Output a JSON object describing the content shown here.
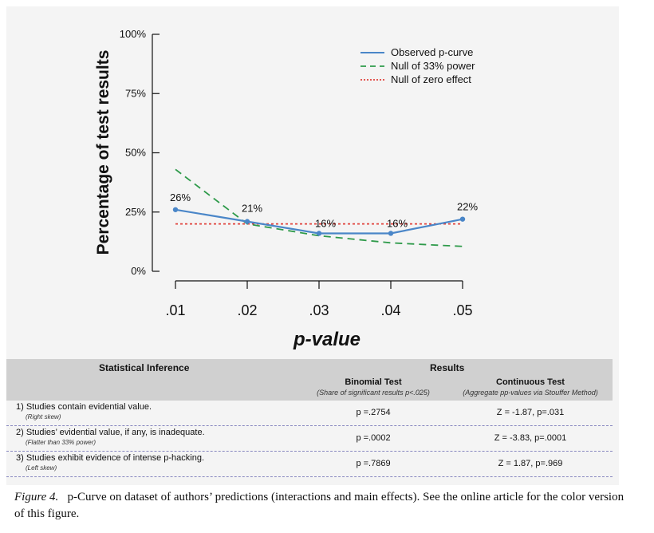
{
  "chart_data": {
    "type": "line",
    "x": [
      0.01,
      0.02,
      0.03,
      0.04,
      0.05
    ],
    "x_tick_labels": [
      ".01",
      ".02",
      ".03",
      ".04",
      ".05"
    ],
    "y_ticks": [
      0,
      25,
      50,
      75,
      100
    ],
    "y_tick_labels": [
      "0%",
      "25%",
      "50%",
      "75%",
      "100%"
    ],
    "ylim": [
      0,
      100
    ],
    "xlabel": "p-value",
    "ylabel": "Percentage of test results",
    "series": [
      {
        "name": "Observed p-curve",
        "values": [
          26,
          21,
          16,
          16,
          22
        ],
        "color": "#4a86c8",
        "style": "solid",
        "data_labels": [
          "26%",
          "21%",
          "16%",
          "16%",
          "22%"
        ]
      },
      {
        "name": "Null of 33% power",
        "values": [
          43,
          20,
          15,
          12,
          10.5
        ],
        "color": "#2e9a4a",
        "style": "dashed"
      },
      {
        "name": "Null of zero effect",
        "values": [
          20,
          20,
          20,
          20,
          20
        ],
        "color": "#e0403a",
        "style": "dotted"
      }
    ],
    "legend_position": "top-right"
  },
  "table": {
    "header_left": "Statistical Inference",
    "header_right": "Results",
    "col_binomial": "Binomial Test",
    "col_binomial_note": "(Share of significant results p<.025)",
    "col_continuous": "Continuous Test",
    "col_continuous_note": "(Aggregate pp-values via Stouffer Method)",
    "rows": [
      {
        "label": "1) Studies contain evidential value.",
        "note": "(Right skew)",
        "binomial": "p =.2754",
        "continuous": "Z = -1.87, p=.031"
      },
      {
        "label": "2) Studies’ evidential value, if any, is inadequate.",
        "note": "(Flatter than 33% power)",
        "binomial": "p =.0002",
        "continuous": "Z = -3.83, p=.0001"
      },
      {
        "label": "3) Studies exhibit evidence of intense p-hacking.",
        "note": "(Left skew)",
        "binomial": "p =.7869",
        "continuous": "Z = 1.87, p=.969"
      }
    ]
  },
  "caption": {
    "label": "Figure 4.",
    "text": "p-Curve on dataset of authors’ predictions (interactions and main effects). See the online article for the color version of this figure."
  }
}
